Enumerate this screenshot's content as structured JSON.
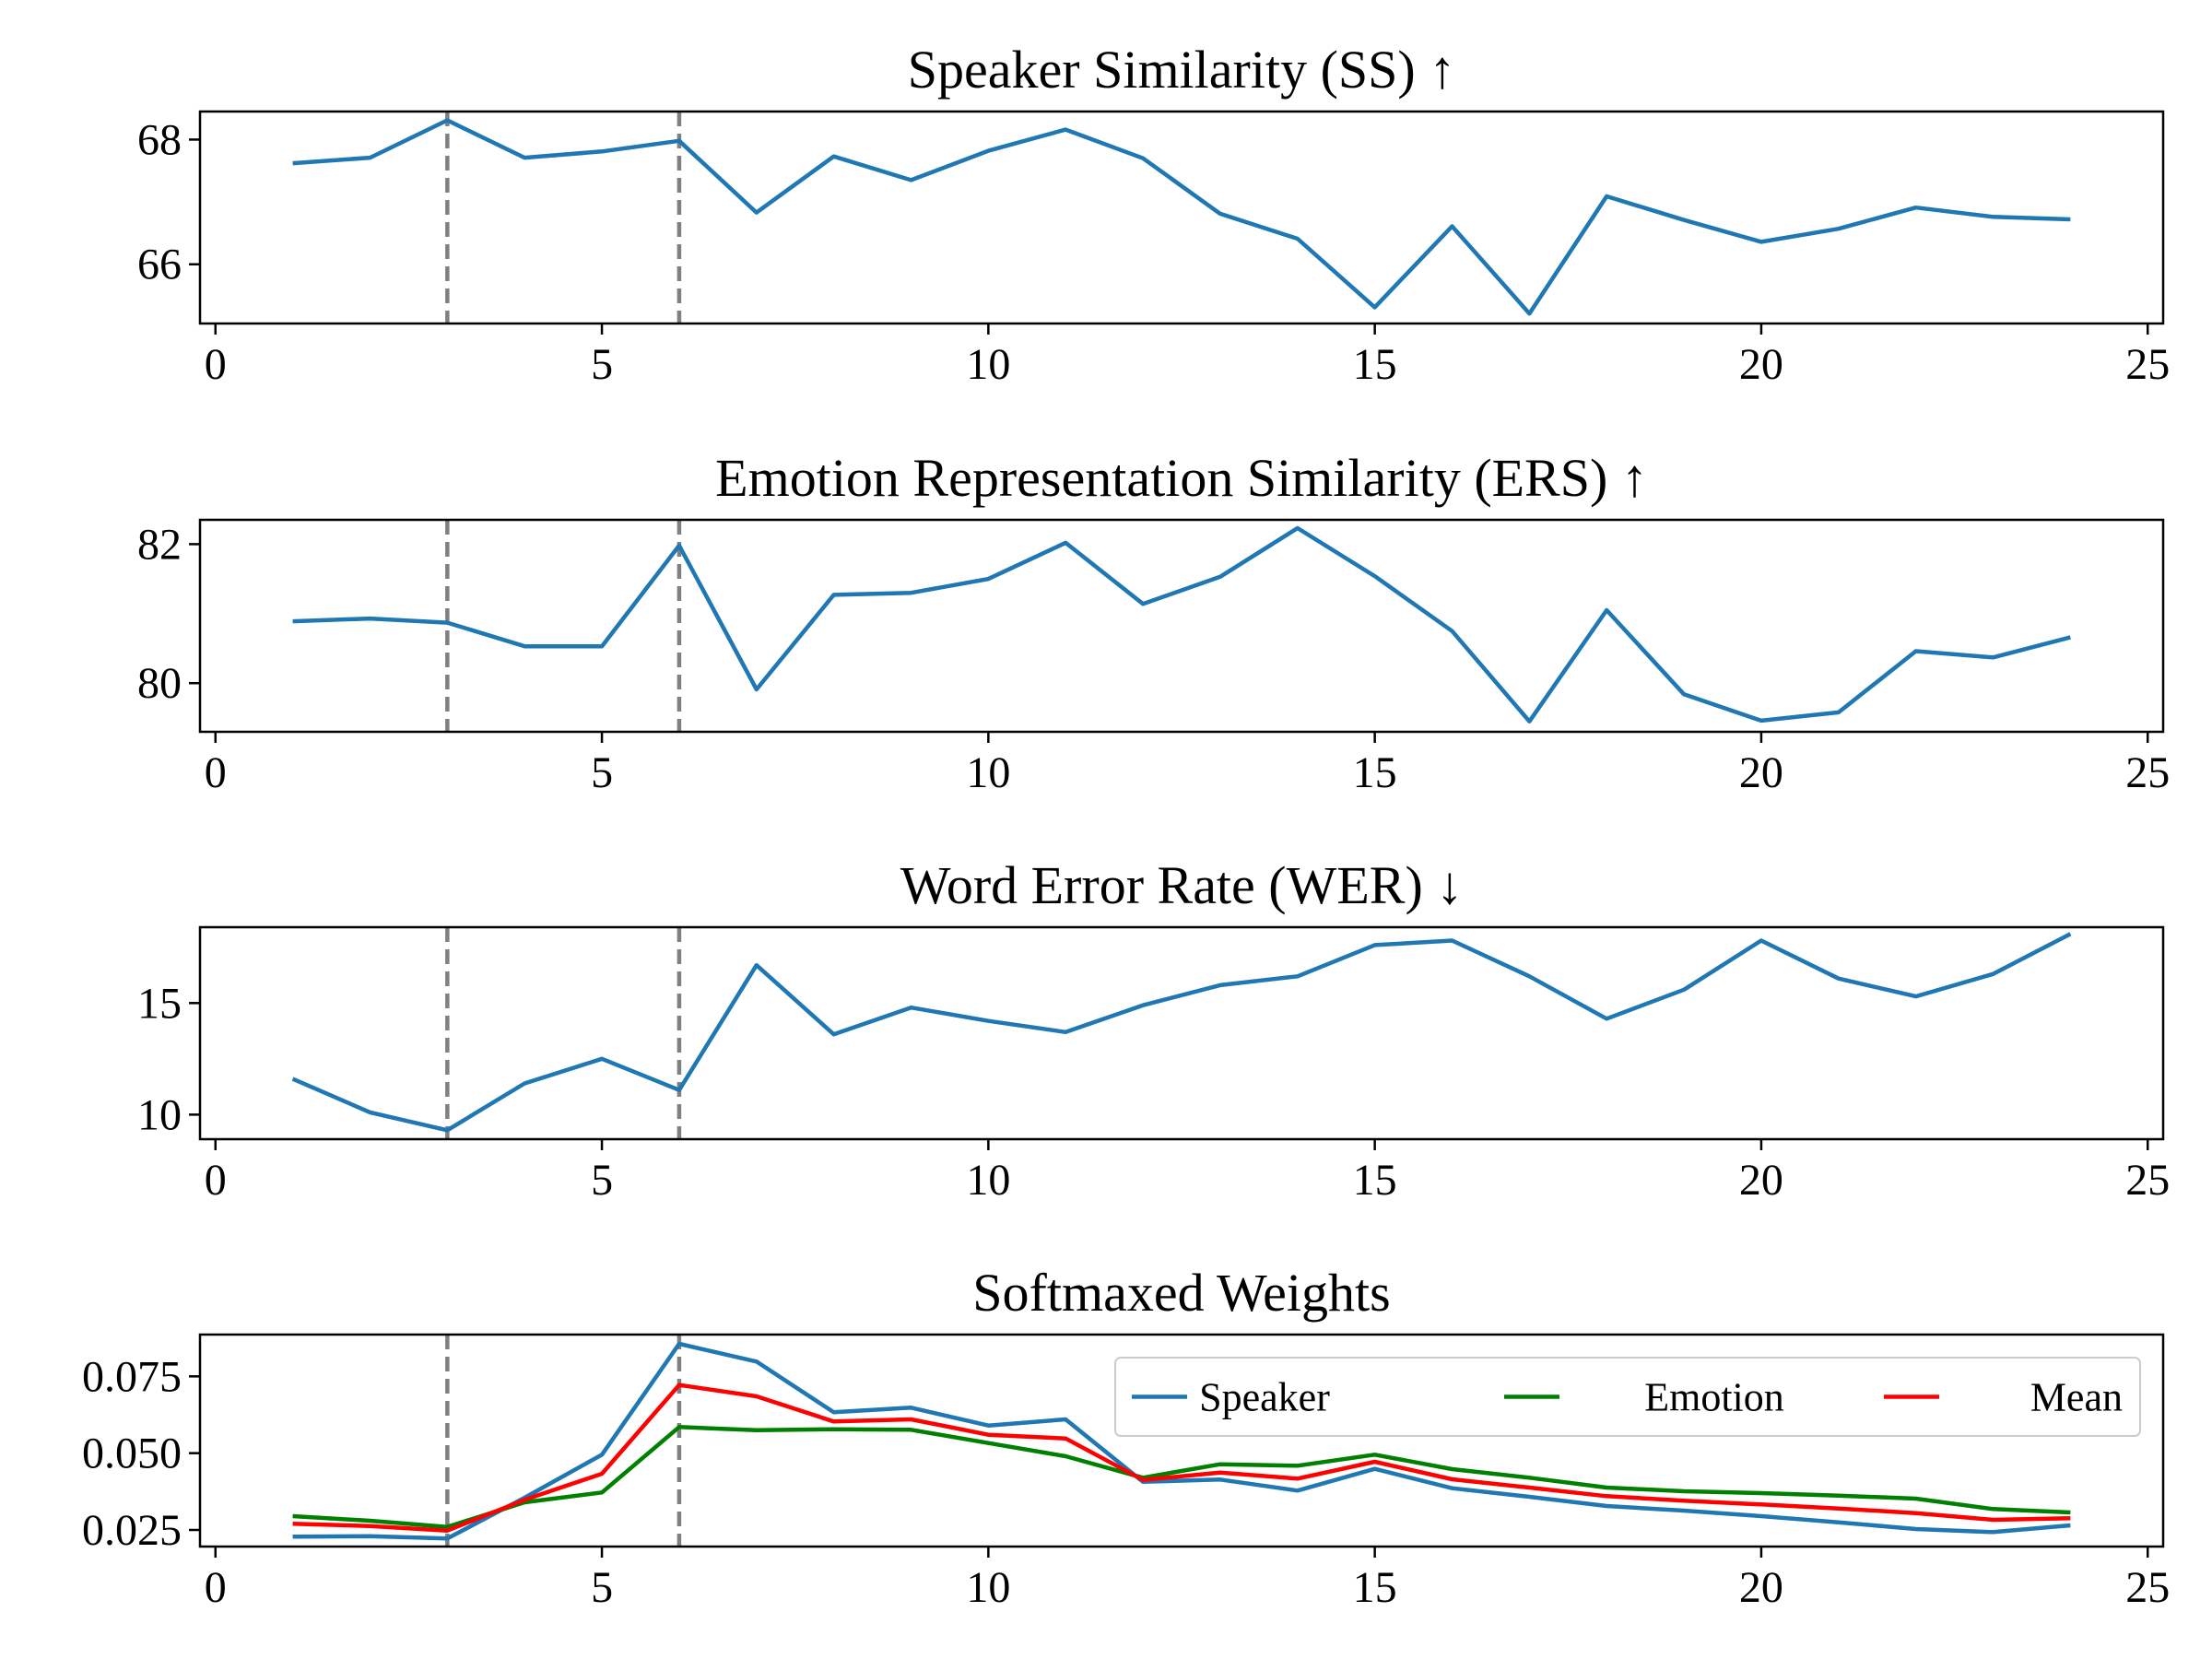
{
  "figure_title": "",
  "chart_data": [
    {
      "type": "line",
      "title": "Speaker Similarity (SS) ↑",
      "xlabel": "",
      "ylabel": "",
      "xlim": [
        -0.2,
        25.2
      ],
      "ylim": [
        65.05,
        68.45
      ],
      "xticks": [
        0,
        5,
        10,
        15,
        20,
        25
      ],
      "yticks": [
        66,
        68
      ],
      "ytick_labels": [
        "66",
        "68"
      ],
      "vlines": [
        3,
        6
      ],
      "legend": false,
      "series": [
        {
          "name": "SS",
          "color": "#1f77b4",
          "x": [
            1,
            2,
            3,
            4,
            5,
            6,
            7,
            8,
            9,
            10,
            11,
            12,
            13,
            14,
            15,
            16,
            17,
            18,
            19,
            20,
            21,
            22,
            23,
            24
          ],
          "values": [
            67.62,
            67.71,
            68.31,
            67.71,
            67.81,
            67.98,
            66.83,
            67.73,
            67.35,
            67.82,
            68.16,
            67.7,
            66.81,
            66.41,
            65.31,
            66.61,
            65.21,
            67.09,
            66.71,
            66.36,
            66.57,
            66.91,
            66.76,
            66.72
          ]
        }
      ]
    },
    {
      "type": "line",
      "title": "Emotion Representation Similarity (ERS) ↑",
      "xlabel": "",
      "ylabel": "",
      "xlim": [
        -0.2,
        25.2
      ],
      "ylim": [
        79.3,
        82.35
      ],
      "xticks": [
        0,
        5,
        10,
        15,
        20,
        25
      ],
      "yticks": [
        80,
        82
      ],
      "ytick_labels": [
        "80",
        "82"
      ],
      "vlines": [
        3,
        6
      ],
      "legend": false,
      "series": [
        {
          "name": "ERS",
          "color": "#1f77b4",
          "x": [
            1,
            2,
            3,
            4,
            5,
            6,
            7,
            8,
            9,
            10,
            11,
            12,
            13,
            14,
            15,
            16,
            17,
            18,
            19,
            20,
            21,
            22,
            23,
            24
          ],
          "values": [
            80.89,
            80.93,
            80.87,
            80.53,
            80.53,
            81.98,
            79.91,
            81.27,
            81.3,
            81.5,
            82.02,
            81.14,
            81.53,
            82.23,
            81.54,
            80.75,
            79.45,
            81.05,
            79.84,
            79.46,
            79.58,
            80.46,
            80.37,
            80.66
          ]
        }
      ]
    },
    {
      "type": "line",
      "title": "Word Error Rate (WER) ↓",
      "xlabel": "",
      "ylabel": "",
      "xlim": [
        -0.2,
        25.2
      ],
      "ylim": [
        8.9,
        18.4
      ],
      "xticks": [
        0,
        5,
        10,
        15,
        20,
        25
      ],
      "yticks": [
        10,
        15
      ],
      "ytick_labels": [
        "10",
        "15"
      ],
      "vlines": [
        3,
        6
      ],
      "legend": false,
      "series": [
        {
          "name": "WER",
          "color": "#1f77b4",
          "x": [
            1,
            2,
            3,
            4,
            5,
            6,
            7,
            8,
            9,
            10,
            11,
            12,
            13,
            14,
            15,
            16,
            17,
            18,
            19,
            20,
            21,
            22,
            23,
            24
          ],
          "values": [
            11.6,
            10.1,
            9.3,
            11.4,
            12.5,
            11.1,
            16.7,
            13.6,
            14.8,
            14.2,
            13.7,
            14.9,
            15.8,
            16.2,
            17.6,
            17.8,
            16.2,
            14.3,
            15.6,
            17.8,
            16.1,
            15.3,
            16.3,
            18.1
          ]
        }
      ]
    },
    {
      "type": "line",
      "title": "Softmaxed Weights",
      "xlabel": "",
      "ylabel": "",
      "xlim": [
        -0.2,
        25.2
      ],
      "ylim": [
        0.0196,
        0.0886
      ],
      "xticks": [
        0,
        5,
        10,
        15,
        20,
        25
      ],
      "yticks": [
        0.025,
        0.05,
        0.075
      ],
      "ytick_labels": [
        "0.025",
        "0.050",
        "0.075"
      ],
      "vlines": [
        3,
        6
      ],
      "legend": true,
      "legend_position": "upper-right",
      "series": [
        {
          "name": "Speaker",
          "color": "#1f77b4",
          "x": [
            1,
            2,
            3,
            4,
            5,
            6,
            7,
            8,
            9,
            10,
            11,
            12,
            13,
            14,
            15,
            16,
            17,
            18,
            19,
            20,
            21,
            22,
            23,
            24
          ],
          "values": [
            0.0228,
            0.023,
            0.0222,
            0.0355,
            0.0495,
            0.0856,
            0.0798,
            0.0633,
            0.0648,
            0.059,
            0.061,
            0.0407,
            0.0414,
            0.0378,
            0.0449,
            0.0386,
            0.0358,
            0.0328,
            0.0313,
            0.0295,
            0.0275,
            0.0253,
            0.0243,
            0.0265
          ]
        },
        {
          "name": "Emotion",
          "color": "#008000",
          "x": [
            1,
            2,
            3,
            4,
            5,
            6,
            7,
            8,
            9,
            10,
            11,
            12,
            13,
            14,
            15,
            16,
            17,
            18,
            19,
            20,
            21,
            22,
            23,
            24
          ],
          "values": [
            0.0295,
            0.028,
            0.026,
            0.034,
            0.0372,
            0.0585,
            0.0575,
            0.0578,
            0.0576,
            0.0533,
            0.049,
            0.042,
            0.0464,
            0.0459,
            0.0495,
            0.0448,
            0.042,
            0.0388,
            0.0376,
            0.037,
            0.0362,
            0.0352,
            0.0318,
            0.0307
          ]
        },
        {
          "name": "Mean",
          "color": "#ff0000",
          "x": [
            1,
            2,
            3,
            4,
            5,
            6,
            7,
            8,
            9,
            10,
            11,
            12,
            13,
            14,
            15,
            16,
            17,
            18,
            19,
            20,
            21,
            22,
            23,
            24
          ],
          "values": [
            0.027,
            0.0263,
            0.0248,
            0.0348,
            0.0433,
            0.0722,
            0.0685,
            0.0603,
            0.061,
            0.056,
            0.0548,
            0.0413,
            0.0437,
            0.0417,
            0.0472,
            0.0415,
            0.0388,
            0.036,
            0.0345,
            0.0333,
            0.032,
            0.0305,
            0.0283,
            0.0288
          ]
        }
      ]
    }
  ]
}
